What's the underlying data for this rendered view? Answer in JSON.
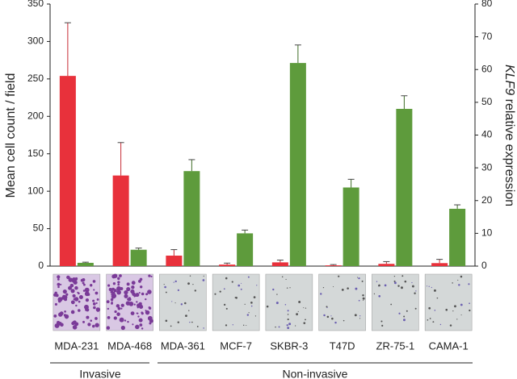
{
  "chart_data": {
    "type": "bar",
    "ylabel": "Mean cell count / field",
    "y2label_gene": "KLF9",
    "y2label": "relative expression",
    "categories": [
      "MDA-231",
      "MDA-468",
      "MDA-361",
      "MCF-7",
      "SKBR-3",
      "T47D",
      "ZR-75-1",
      "CAMA-1"
    ],
    "groups": [
      "Invasive",
      "Non-invasive"
    ],
    "series": [
      {
        "color": "#e8313b",
        "values": [
          254,
          121,
          14,
          2,
          5,
          1,
          3,
          4
        ],
        "errors": [
          71,
          44,
          8,
          2,
          3,
          1,
          3,
          5
        ]
      },
      {
        "color": "#5e9b3c",
        "axis": "y2",
        "values": [
          1,
          5,
          29,
          10,
          62,
          24,
          48,
          17.5
        ],
        "errors": [
          0.2,
          0.5,
          3.5,
          1,
          5.5,
          2.5,
          4,
          1.2
        ]
      }
    ],
    "ylim": [
      0,
      350
    ],
    "yticks": [
      0,
      50,
      100,
      150,
      200,
      250,
      300,
      350
    ],
    "y2lim": [
      0,
      80
    ],
    "y2ticks": [
      0,
      10,
      20,
      30,
      40,
      50,
      60,
      70,
      80
    ]
  }
}
